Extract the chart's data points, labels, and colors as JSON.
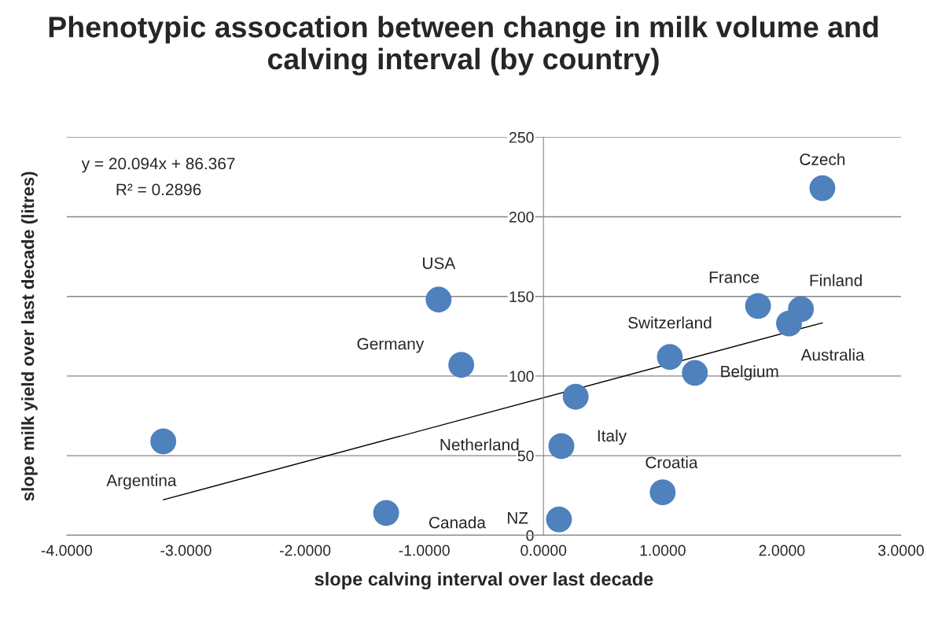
{
  "chart_data": {
    "type": "scatter",
    "title": "Phenotypic assocation between change in milk volume and calving interval (by country)",
    "xlabel": "slope calving interval over last decade",
    "ylabel": "slope milk yield over last decade (litres)",
    "annotations": [
      "y = 20.094x + 86.367",
      "R² = 0.2896"
    ],
    "xlim": [
      -4,
      3
    ],
    "xticks": [
      {
        "value": -4,
        "label": "-4.0000"
      },
      {
        "value": -3,
        "label": "-3.0000"
      },
      {
        "value": -2,
        "label": "-2.0000"
      },
      {
        "value": -1,
        "label": "-1.0000"
      },
      {
        "value": 0,
        "label": "0.0000"
      },
      {
        "value": 1,
        "label": "1.0000"
      },
      {
        "value": 2,
        "label": "2.0000"
      },
      {
        "value": 3,
        "label": "3.0000"
      }
    ],
    "ylim": [
      0,
      250
    ],
    "yticks": [
      0,
      50,
      100,
      150,
      200,
      250
    ],
    "grid": "y",
    "legend": false,
    "marker": "circle",
    "series": [
      {
        "name": "Czech",
        "color": "#4f81bd",
        "x": [
          2.34
        ],
        "values": [
          218
        ]
      },
      {
        "name": "Finland",
        "color": "#4f81bd",
        "x": [
          2.16
        ],
        "values": [
          142
        ]
      },
      {
        "name": "France",
        "color": "#4f81bd",
        "x": [
          1.8
        ],
        "values": [
          144
        ]
      },
      {
        "name": "Australia",
        "color": "#4f81bd",
        "x": [
          2.06
        ],
        "values": [
          133
        ]
      },
      {
        "name": "Switzerland",
        "color": "#4f81bd",
        "x": [
          1.06
        ],
        "values": [
          112
        ]
      },
      {
        "name": "Belgium",
        "color": "#4f81bd",
        "x": [
          1.27
        ],
        "values": [
          102
        ]
      },
      {
        "name": "USA",
        "color": "#4f81bd",
        "x": [
          -0.88
        ],
        "values": [
          148
        ]
      },
      {
        "name": "Germany",
        "color": "#4f81bd",
        "x": [
          -0.69
        ],
        "values": [
          107
        ]
      },
      {
        "name": "Italy",
        "color": "#4f81bd",
        "x": [
          0.27
        ],
        "values": [
          87
        ]
      },
      {
        "name": "Netherland",
        "color": "#4f81bd",
        "x": [
          0.15
        ],
        "values": [
          56
        ]
      },
      {
        "name": "Croatia",
        "color": "#4f81bd",
        "x": [
          1.0
        ],
        "values": [
          27
        ]
      },
      {
        "name": "NZ",
        "color": "#4f81bd",
        "x": [
          0.13
        ],
        "values": [
          10
        ]
      },
      {
        "name": "Canada",
        "color": "#4f81bd",
        "x": [
          -1.32
        ],
        "values": [
          14
        ]
      },
      {
        "name": "Argentina",
        "color": "#4f81bd",
        "x": [
          -3.19
        ],
        "values": [
          59
        ]
      },
      {
        "type": "line",
        "marker": "none",
        "color": "#000000",
        "x": [
          -3.19,
          2.34
        ],
        "values": [
          22.3,
          133.4
        ]
      }
    ]
  }
}
